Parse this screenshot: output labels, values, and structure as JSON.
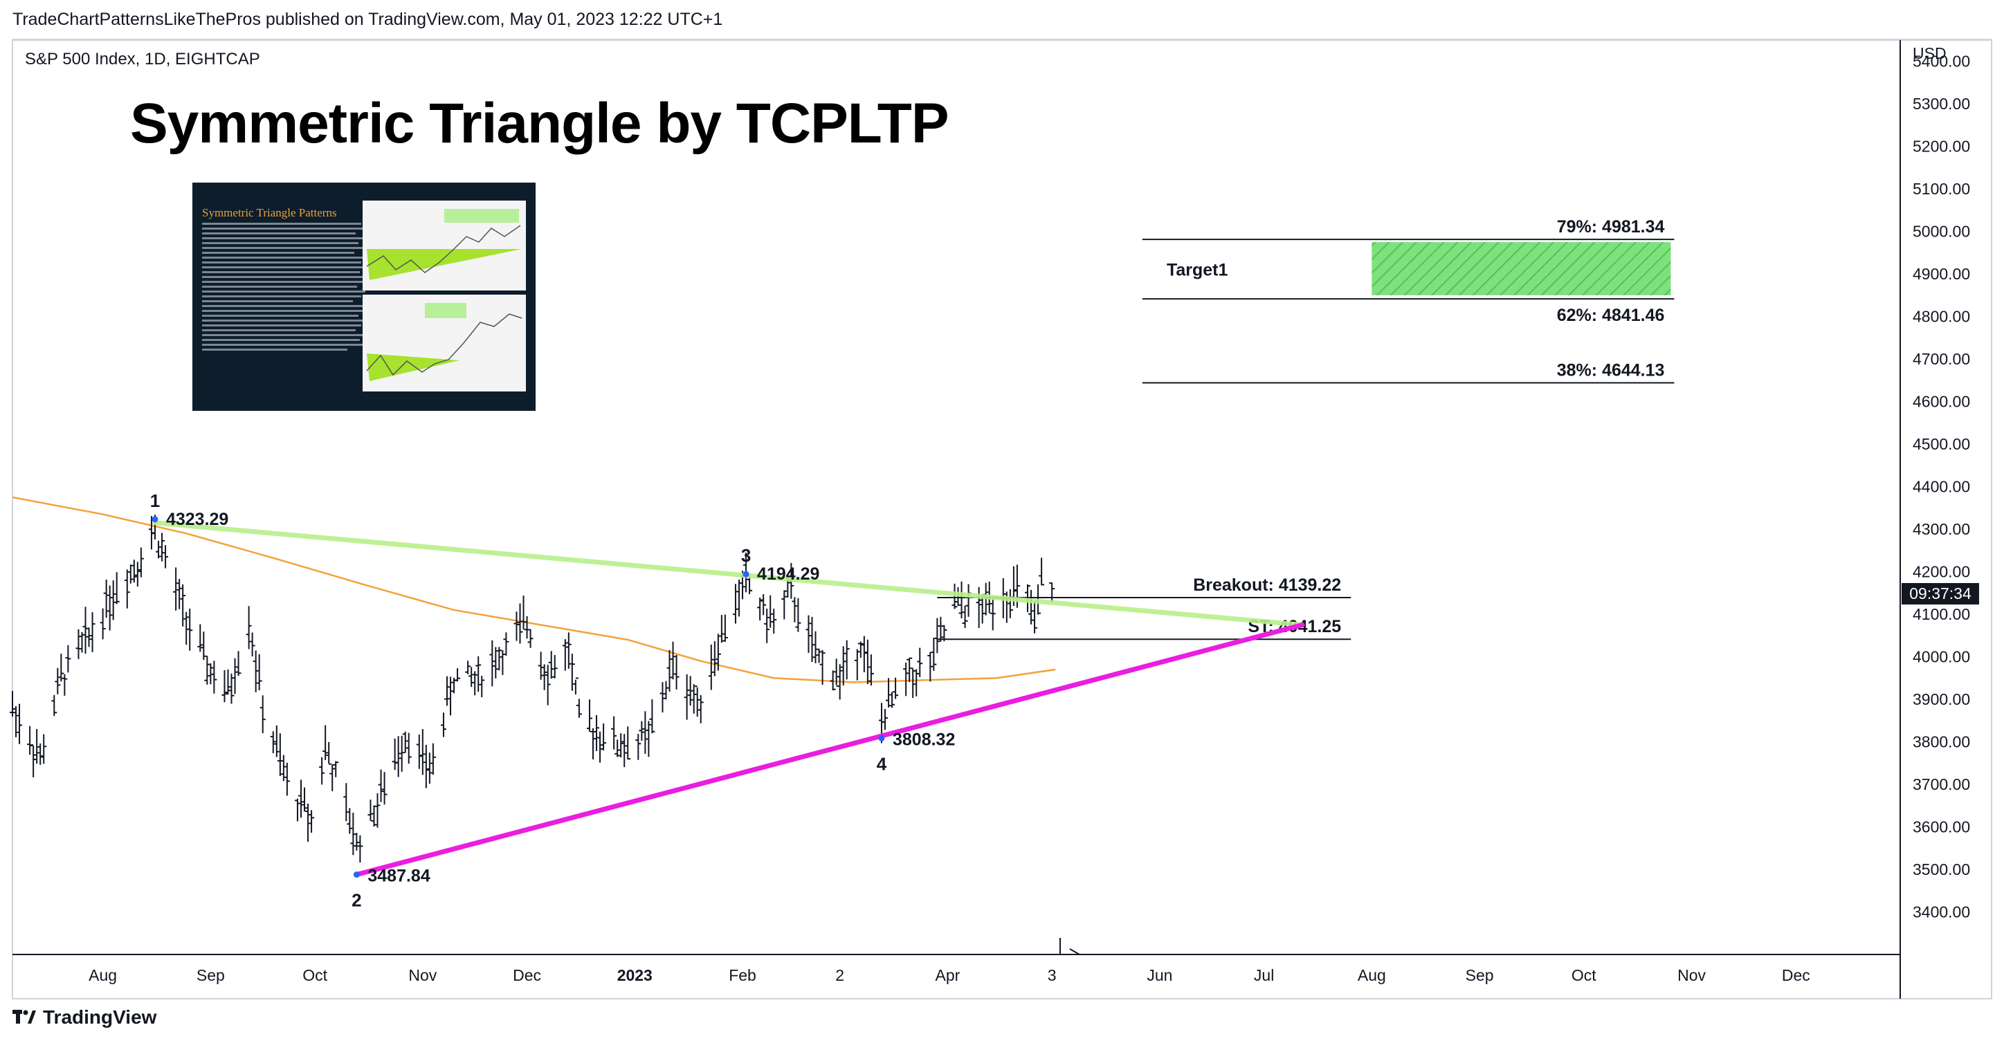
{
  "header": {
    "published_by": "TradeChartPatternsLikeThePros published on TradingView.com, May 01, 2023 12:22 UTC+1",
    "symbol": "S&P 500 Index, 1D, EIGHTCAP"
  },
  "footer": {
    "brand": "TradingView"
  },
  "inset": {
    "heading": "Symmetric Triangle Patterns"
  },
  "price_axis": {
    "currency": "USD",
    "current_time": "09:37:34"
  },
  "colors": {
    "upper_trendline": "#b8f08a",
    "lower_trendline": "#e91ee0",
    "moving_average": "#f4a13c",
    "target_zone": "#7fe07f",
    "candles": "#131722"
  },
  "chart_data": {
    "type": "line",
    "title": "Symmetric Triangle by TCPLTP",
    "ylim": [
      3300,
      5450
    ],
    "y_ticks": [
      3400,
      3500,
      3600,
      3700,
      3800,
      3900,
      4000,
      4100,
      4200,
      4300,
      4400,
      4500,
      4600,
      4700,
      4800,
      4900,
      5000,
      5100,
      5200,
      5300,
      5400
    ],
    "y_tick_labels": [
      "3400.00",
      "3500.00",
      "3600.00",
      "3700.00",
      "3800.00",
      "3900.00",
      "4000.00",
      "4100.00",
      "4200.00",
      "4300.00",
      "4400.00",
      "4500.00",
      "4600.00",
      "4700.00",
      "4800.00",
      "4900.00",
      "5000.00",
      "5100.00",
      "5200.00",
      "5300.00",
      "5400.00"
    ],
    "x_tick_labels": [
      "Aug",
      "Sep",
      "Oct",
      "Nov",
      "Dec",
      "2023",
      "Feb",
      "2",
      "Apr",
      "3",
      "Jun",
      "Jul",
      "Aug",
      "Sep",
      "Oct",
      "Nov",
      "Dec"
    ],
    "x_ticks": [
      "2022-08-01",
      "2022-09-01",
      "2022-10-01",
      "2022-11-01",
      "2022-12-01",
      "2023-01-01",
      "2023-02-01",
      "2023-03-01",
      "2023-04-01",
      "2023-05-01",
      "2023-06-01",
      "2023-07-01",
      "2023-08-01",
      "2023-09-01",
      "2023-10-01",
      "2023-11-01",
      "2023-12-01"
    ],
    "xlim": [
      "2022-07-06",
      "2023-12-31"
    ],
    "pivots": [
      {
        "label": "1",
        "date": "2022-08-16",
        "price": 4323.29,
        "price_text": "4323.29"
      },
      {
        "label": "2",
        "date": "2022-10-13",
        "price": 3487.84,
        "price_text": "3487.84"
      },
      {
        "label": "3",
        "date": "2023-02-02",
        "price": 4194.29,
        "price_text": "4194.29"
      },
      {
        "label": "4",
        "date": "2023-03-13",
        "price": 3808.32,
        "price_text": "3808.32"
      }
    ],
    "upper_trendline": {
      "from": {
        "date": "2022-08-16",
        "price": 4315
      },
      "to": {
        "date": "2023-07-12",
        "price": 4075
      }
    },
    "lower_trendline": {
      "from": {
        "date": "2022-10-13",
        "price": 3487.84
      },
      "to": {
        "date": "2023-07-12",
        "price": 4075
      }
    },
    "levels": [
      {
        "label": "Breakout: 4139.22",
        "price": 4139.22,
        "from": "2023-03-29",
        "to": "2023-07-26"
      },
      {
        "label": "ST: 4041.25",
        "price": 4041.25,
        "from": "2023-03-29",
        "to": "2023-07-26"
      },
      {
        "label": "79%: 4981.34",
        "price": 4981.34,
        "from": "2023-05-27",
        "to": "2023-10-27"
      },
      {
        "label": "62%: 4841.46",
        "price": 4841.46,
        "from": "2023-05-27",
        "to": "2023-10-27"
      },
      {
        "label": "38%: 4644.13",
        "price": 4644.13,
        "from": "2023-05-27",
        "to": "2023-10-27"
      }
    ],
    "target": {
      "label": "Target1",
      "low": 4850,
      "high": 4975,
      "from": "2023-08-01",
      "to": "2023-10-26"
    },
    "moving_average": [
      {
        "date": "2022-07-06",
        "price": 4375
      },
      {
        "date": "2022-08-01",
        "price": 4335
      },
      {
        "date": "2022-08-25",
        "price": 4290
      },
      {
        "date": "2022-09-20",
        "price": 4230
      },
      {
        "date": "2022-10-15",
        "price": 4170
      },
      {
        "date": "2022-11-10",
        "price": 4110
      },
      {
        "date": "2022-12-05",
        "price": 4075
      },
      {
        "date": "2022-12-30",
        "price": 4040
      },
      {
        "date": "2023-01-20",
        "price": 3990
      },
      {
        "date": "2023-02-10",
        "price": 3950
      },
      {
        "date": "2023-03-05",
        "price": 3940
      },
      {
        "date": "2023-03-25",
        "price": 3945
      },
      {
        "date": "2023-04-15",
        "price": 3950
      },
      {
        "date": "2023-05-02",
        "price": 3970
      }
    ],
    "price_path": [
      {
        "date": "2022-07-06",
        "price": 3880
      },
      {
        "date": "2022-07-14",
        "price": 3760
      },
      {
        "date": "2022-07-20",
        "price": 3950
      },
      {
        "date": "2022-07-28",
        "price": 4050
      },
      {
        "date": "2022-08-04",
        "price": 4150
      },
      {
        "date": "2022-08-10",
        "price": 4210
      },
      {
        "date": "2022-08-16",
        "price": 4300
      },
      {
        "date": "2022-08-23",
        "price": 4130
      },
      {
        "date": "2022-08-30",
        "price": 3990
      },
      {
        "date": "2022-09-06",
        "price": 3910
      },
      {
        "date": "2022-09-12",
        "price": 4090
      },
      {
        "date": "2022-09-16",
        "price": 3880
      },
      {
        "date": "2022-09-23",
        "price": 3700
      },
      {
        "date": "2022-09-30",
        "price": 3620
      },
      {
        "date": "2022-10-04",
        "price": 3790
      },
      {
        "date": "2022-10-13",
        "price": 3560
      },
      {
        "date": "2022-10-20",
        "price": 3670
      },
      {
        "date": "2022-10-27",
        "price": 3820
      },
      {
        "date": "2022-11-03",
        "price": 3730
      },
      {
        "date": "2022-11-10",
        "price": 3950
      },
      {
        "date": "2022-11-17",
        "price": 3950
      },
      {
        "date": "2022-11-25",
        "price": 4020
      },
      {
        "date": "2022-12-01",
        "price": 4080
      },
      {
        "date": "2022-12-07",
        "price": 3960
      },
      {
        "date": "2022-12-13",
        "price": 4020
      },
      {
        "date": "2022-12-16",
        "price": 3850
      },
      {
        "date": "2022-12-22",
        "price": 3820
      },
      {
        "date": "2022-12-28",
        "price": 3790
      },
      {
        "date": "2023-01-05",
        "price": 3810
      },
      {
        "date": "2023-01-12",
        "price": 3980
      },
      {
        "date": "2023-01-19",
        "price": 3890
      },
      {
        "date": "2023-01-26",
        "price": 4050
      },
      {
        "date": "2023-02-02",
        "price": 4180
      },
      {
        "date": "2023-02-09",
        "price": 4080
      },
      {
        "date": "2023-02-15",
        "price": 4150
      },
      {
        "date": "2023-02-22",
        "price": 4000
      },
      {
        "date": "2023-03-01",
        "price": 3950
      },
      {
        "date": "2023-03-07",
        "price": 4040
      },
      {
        "date": "2023-03-13",
        "price": 3850
      },
      {
        "date": "2023-03-20",
        "price": 3950
      },
      {
        "date": "2023-03-27",
        "price": 3980
      },
      {
        "date": "2023-04-03",
        "price": 4120
      },
      {
        "date": "2023-04-10",
        "price": 4110
      },
      {
        "date": "2023-04-17",
        "price": 4150
      },
      {
        "date": "2023-04-24",
        "price": 4140
      },
      {
        "date": "2023-04-26",
        "price": 4060
      },
      {
        "date": "2023-04-28",
        "price": 4170
      },
      {
        "date": "2023-05-01",
        "price": 4168
      }
    ]
  }
}
